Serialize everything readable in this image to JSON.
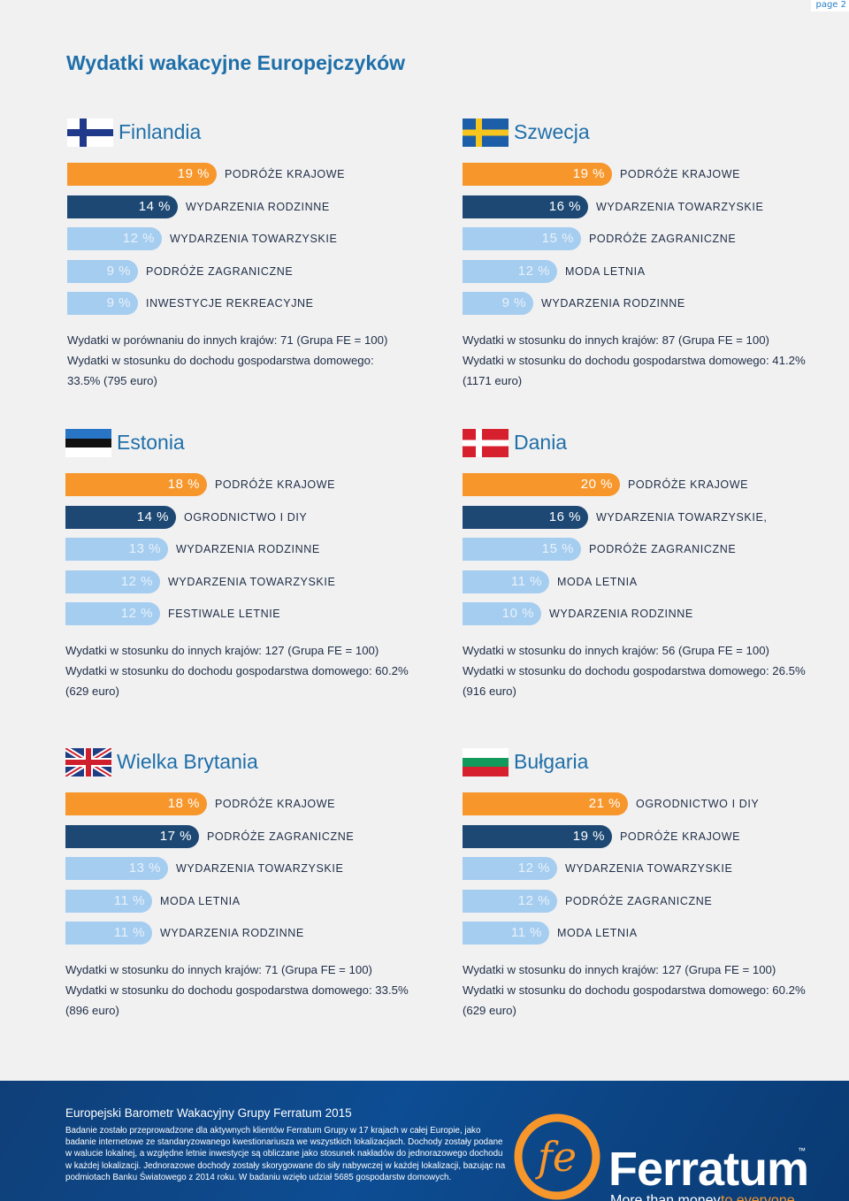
{
  "page_label": "page 2",
  "title": "Wydatki wakacyjne Europejczyków",
  "countries": [
    {
      "name": "Finlandia",
      "flag_icon": "finland-flag-icon",
      "bars": [
        {
          "pct": "19 %",
          "label": "PODRÓŻE KRAJOWE",
          "value": 19,
          "color": "orange"
        },
        {
          "pct": "14 %",
          "label": "WYDARZENIA RODZINNE",
          "value": 14,
          "color": "dark"
        },
        {
          "pct": "12 %",
          "label": "WYDARZENIA TOWARZYSKIE",
          "value": 12,
          "color": "light"
        },
        {
          "pct": "9 %",
          "label": "PODRÓŻE ZAGRANICZNE",
          "value": 9,
          "color": "light"
        },
        {
          "pct": "9 %",
          "label": "INWESTYCJE REKREACYJNE",
          "value": 9,
          "color": "light"
        }
      ],
      "stats": [
        "Wydatki w porównaniu do innych krajów: 71 (Grupa FE = 100)",
        "Wydatki w stosunku do dochodu gospodarstwa domowego:",
        "33.5% (795 euro)"
      ]
    },
    {
      "name": "Szwecja",
      "flag_icon": "sweden-flag-icon",
      "bars": [
        {
          "pct": "19 %",
          "label": "PODRÓŻE KRAJOWE",
          "value": 19,
          "color": "orange"
        },
        {
          "pct": "16 %",
          "label": "WYDARZENIA TOWARZYSKIE",
          "value": 16,
          "color": "dark"
        },
        {
          "pct": "15 %",
          "label": "PODRÓŻE ZAGRANICZNE",
          "value": 15,
          "color": "light"
        },
        {
          "pct": "12 %",
          "label": "MODA LETNIA",
          "value": 12,
          "color": "light"
        },
        {
          "pct": "9 %",
          "label": "WYDARZENIA RODZINNE",
          "value": 9,
          "color": "light"
        }
      ],
      "stats": [
        "Wydatki w stosunku do innych krajów: 87 (Grupa FE = 100)",
        "Wydatki w stosunku do dochodu gospodarstwa domowego: 41.2%",
        "(1171 euro)"
      ]
    },
    {
      "name": "Estonia",
      "flag_icon": "estonia-flag-icon",
      "bars": [
        {
          "pct": "18 %",
          "label": "PODRÓŻE KRAJOWE",
          "value": 18,
          "color": "orange"
        },
        {
          "pct": "14 %",
          "label": "OGRODNICTWO I DIY",
          "value": 14,
          "color": "dark"
        },
        {
          "pct": "13 %",
          "label": "WYDARZENIA RODZINNE",
          "value": 13,
          "color": "light"
        },
        {
          "pct": "12 %",
          "label": "WYDARZENIA TOWARZYSKIE",
          "value": 12,
          "color": "light"
        },
        {
          "pct": "12 %",
          "label": "FESTIWALE LETNIE",
          "value": 12,
          "color": "light"
        }
      ],
      "stats": [
        "Wydatki w stosunku do innych krajów: 127 (Grupa FE = 100)",
        "Wydatki w stosunku do dochodu gospodarstwa domowego: 60.2%",
        "(629 euro)"
      ]
    },
    {
      "name": "Dania",
      "flag_icon": "denmark-flag-icon",
      "bars": [
        {
          "pct": "20 %",
          "label": "PODRÓŻE KRAJOWE",
          "value": 20,
          "color": "orange"
        },
        {
          "pct": "16 %",
          "label": "WYDARZENIA TOWARZYSKIE,",
          "value": 16,
          "color": "dark"
        },
        {
          "pct": "15 %",
          "label": "PODRÓŻE ZAGRANICZNE",
          "value": 15,
          "color": "light"
        },
        {
          "pct": "11 %",
          "label": "MODA LETNIA",
          "value": 11,
          "color": "light"
        },
        {
          "pct": "10 %",
          "label": "WYDARZENIA RODZINNE",
          "value": 10,
          "color": "light"
        }
      ],
      "stats": [
        "Wydatki w stosunku do innych krajów: 56 (Grupa FE = 100)",
        "Wydatki w stosunku do dochodu gospodarstwa domowego: 26.5%",
        "(916 euro)"
      ]
    },
    {
      "name": "Wielka Brytania",
      "flag_icon": "uk-flag-icon",
      "bars": [
        {
          "pct": "18 %",
          "label": "PODRÓŻE KRAJOWE",
          "value": 18,
          "color": "orange"
        },
        {
          "pct": "17 %",
          "label": "PODRÓŻE ZAGRANICZNE",
          "value": 17,
          "color": "dark"
        },
        {
          "pct": "13 %",
          "label": "WYDARZENIA TOWARZYSKIE",
          "value": 13,
          "color": "light"
        },
        {
          "pct": "11 %",
          "label": "MODA LETNIA",
          "value": 11,
          "color": "light"
        },
        {
          "pct": "11 %",
          "label": "WYDARZENIA RODZINNE",
          "value": 11,
          "color": "light"
        }
      ],
      "stats": [
        "Wydatki w stosunku do innych krajów: 71 (Grupa FE = 100)",
        "Wydatki w stosunku do dochodu gospodarstwa domowego: 33.5%",
        "(896 euro)"
      ]
    },
    {
      "name": "Bułgaria",
      "flag_icon": "bulgaria-flag-icon",
      "bars": [
        {
          "pct": "21 %",
          "label": "OGRODNICTWO I DIY",
          "value": 21,
          "color": "orange"
        },
        {
          "pct": "19 %",
          "label": "PODRÓŻE KRAJOWE",
          "value": 19,
          "color": "dark"
        },
        {
          "pct": "12 %",
          "label": "WYDARZENIA TOWARZYSKIE",
          "value": 12,
          "color": "light"
        },
        {
          "pct": "12 %",
          "label": "PODRÓŻE ZAGRANICZNE",
          "value": 12,
          "color": "light"
        },
        {
          "pct": "11 %",
          "label": "MODA LETNIA",
          "value": 11,
          "color": "light"
        }
      ],
      "stats": [
        "Wydatki w stosunku do innych krajów: 127 (Grupa FE = 100)",
        "Wydatki w stosunku do dochodu gospodarstwa domowego: 60.2%",
        "(629 euro)"
      ]
    }
  ],
  "colors": {
    "orange": "#f7962b",
    "dark": "#1d4873",
    "light": "#a5cdf0",
    "title_blue": "#1f6fa8"
  },
  "footer": {
    "title": "Europejski Barometr Wakacyjny Grupy Ferratum 2015",
    "text": "Badanie zostało przeprowadzone dla aktywnych klientów Ferratum Grupy w 17 krajach w całej Europie, jako badanie internetowe ze standaryzowanego kwestionariusza we wszystkich lokalizacjach. Dochody zostały podane w walucie lokalnej, a względne letnie inwestycje są obliczane jako stosunek nakładów do jednorazowego dochodu w każdej lokalizacji. Jednorazowe dochody zostały skorygowane do siły nabywczej w każdej lokalizacji, bazując na podmiotach Banku Światowego z 2014 roku. W badaniu wzięło udział 5685 gospodarstw domowych.",
    "logo_icon": "ferratum-logo-icon",
    "logo_text": "Ferratum",
    "logo_fe": "fe",
    "tagline_1": "More than money",
    "tagline_2": "to everyone"
  }
}
